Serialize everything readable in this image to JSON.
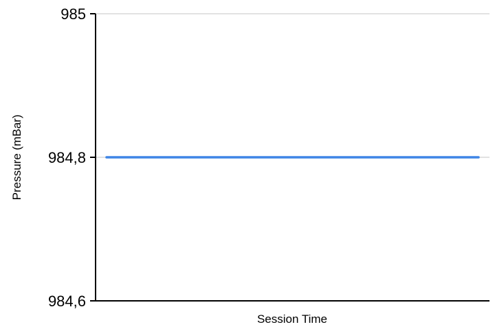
{
  "chart_data": {
    "type": "line",
    "title": "",
    "xlabel": "Session Time",
    "ylabel": "Pressure (mBar)",
    "ylim": [
      984.6,
      985
    ],
    "yticks": [
      {
        "value": 984.6,
        "label": "984,6"
      },
      {
        "value": 984.8,
        "label": "984,8"
      },
      {
        "value": 985,
        "label": "985"
      }
    ],
    "grid": true,
    "legend": "none",
    "series": [
      {
        "color": "#3f85e6",
        "x": [
          0,
          1
        ],
        "y": [
          984.8,
          984.8
        ]
      }
    ]
  }
}
